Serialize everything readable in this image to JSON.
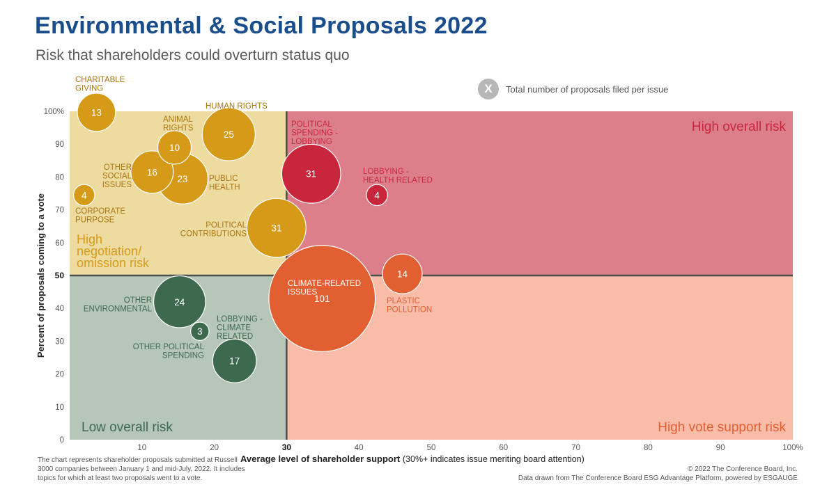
{
  "title": "Environmental & Social Proposals 2022",
  "subtitle": "Risk that shareholders could overturn status quo",
  "legend": {
    "badge": "X",
    "text": "Total number of proposals filed per issue",
    "color": "#b7b7b7"
  },
  "footnote": "The chart represents shareholder proposals submitted at Russell 3000 companies between January 1 and mid-July, 2022. It includes topics for which at least two proposals went to a vote.",
  "copyright": "© 2022 The Conference Board, Inc.",
  "source": "Data drawn from The Conference Board ESG Advantage Platform, powered by ESGAUGE",
  "colors": {
    "quad_top_left": "#eedba0",
    "quad_top_right": "#dd7f8a",
    "quad_bottom_left": "#b6c6b9",
    "quad_bottom_right": "#f8bca8",
    "gold": "#d69a19",
    "red": "#c8263d",
    "orange": "#e25f32",
    "green": "#3d6a4e",
    "divider": "#4a4f4a"
  },
  "chart_data": {
    "type": "scatter",
    "xlabel": "Average level of shareholder support (30%+ indicates issue meriting board attention)",
    "ylabel": "Percent of proposals coming to a vote",
    "xlim": [
      0,
      100
    ],
    "ylim": [
      0,
      100
    ],
    "x_ticks": [
      {
        "value": 10,
        "label": "10"
      },
      {
        "value": 20,
        "label": "20"
      },
      {
        "value": 30,
        "label": "30"
      },
      {
        "value": 40,
        "label": "40"
      },
      {
        "value": 50,
        "label": "50"
      },
      {
        "value": 60,
        "label": "60"
      },
      {
        "value": 70,
        "label": "70"
      },
      {
        "value": 80,
        "label": "80"
      },
      {
        "value": 90,
        "label": "90"
      },
      {
        "value": 100,
        "label": "100%"
      }
    ],
    "y_ticks": [
      {
        "value": 0,
        "label": "0"
      },
      {
        "value": 10,
        "label": "10"
      },
      {
        "value": 20,
        "label": "20"
      },
      {
        "value": 30,
        "label": "30"
      },
      {
        "value": 40,
        "label": "40"
      },
      {
        "value": 50,
        "label": "50"
      },
      {
        "value": 60,
        "label": "60"
      },
      {
        "value": 70,
        "label": "70"
      },
      {
        "value": 80,
        "label": "80"
      },
      {
        "value": 90,
        "label": "90"
      },
      {
        "value": 100,
        "label": "100%"
      }
    ],
    "x_threshold": 30,
    "y_threshold": 50,
    "quadrant_labels": [
      {
        "id": "high-overall",
        "text": [
          "High overall risk"
        ],
        "color": "#c8263d"
      },
      {
        "id": "high-negotiation",
        "text": [
          "High",
          "negotiation/",
          "omission risk"
        ],
        "color": "#d69a19"
      },
      {
        "id": "low-overall",
        "text": [
          "Low overall risk"
        ],
        "color": "#3d6a4e"
      },
      {
        "id": "high-vote-support",
        "text": [
          "High vote support risk"
        ],
        "color": "#e25f32"
      }
    ],
    "points": [
      {
        "name": "CHARITABLE GIVING",
        "label": [
          "CHARITABLE",
          "GIVING"
        ],
        "x": 3.7,
        "y": 99.7,
        "proposals": 13,
        "group": "gold"
      },
      {
        "name": "HUMAN RIGHTS",
        "label": [
          "HUMAN RIGHTS"
        ],
        "x": 22,
        "y": 93,
        "proposals": 25,
        "group": "gold"
      },
      {
        "name": "ANIMAL RIGHTS",
        "label": [
          "ANIMAL",
          "RIGHTS"
        ],
        "x": 14.5,
        "y": 89,
        "proposals": 10,
        "group": "gold"
      },
      {
        "name": "OTHER SOCIAL ISSUES",
        "label": [
          "OTHER",
          "SOCIAL",
          "ISSUES"
        ],
        "x": 11.4,
        "y": 81.5,
        "proposals": 16,
        "group": "gold"
      },
      {
        "name": "PUBLIC HEALTH",
        "label": [
          "PUBLIC",
          "HEALTH"
        ],
        "x": 15.6,
        "y": 79.5,
        "proposals": 23,
        "group": "gold"
      },
      {
        "name": "CORPORATE PURPOSE",
        "label": [
          "CORPORATE",
          "PURPOSE"
        ],
        "x": 2,
        "y": 74.5,
        "proposals": 4,
        "group": "gold"
      },
      {
        "name": "POLITICAL CONTRIBUTIONS",
        "label": [
          "POLITICAL",
          "CONTRIBUTIONS"
        ],
        "x": 28.6,
        "y": 64.5,
        "proposals": 31,
        "group": "gold"
      },
      {
        "name": "POLITICAL SPENDING - LOBBYING",
        "label": [
          "POLITICAL",
          "SPENDING -",
          "LOBBYING"
        ],
        "x": 33.4,
        "y": 81,
        "proposals": 31,
        "group": "red"
      },
      {
        "name": "LOBBYING - HEALTH RELATED",
        "label": [
          "LOBBYING -",
          "HEALTH RELATED"
        ],
        "x": 42.5,
        "y": 74.5,
        "proposals": 4,
        "group": "red"
      },
      {
        "name": "CLIMATE-RELATED ISSUES",
        "label": [
          "CLIMATE-RELATED",
          "ISSUES"
        ],
        "x": 34.9,
        "y": 43,
        "proposals": 101,
        "group": "orange"
      },
      {
        "name": "PLASTIC POLLUTION",
        "label": [
          "PLASTIC",
          "POLLUTION"
        ],
        "x": 46,
        "y": 50.5,
        "proposals": 14,
        "group": "orange"
      },
      {
        "name": "OTHER ENVIRONMENTAL",
        "label": [
          "OTHER",
          "ENVIRONMENTAL"
        ],
        "x": 15.2,
        "y": 42,
        "proposals": 24,
        "group": "green"
      },
      {
        "name": "OTHER POLITICAL SPENDING",
        "label": [
          "OTHER POLITICAL",
          "SPENDING"
        ],
        "x": 18,
        "y": 33,
        "proposals": 3,
        "group": "green"
      },
      {
        "name": "LOBBYING - CLIMATE RELATED",
        "label": [
          "LOBBYING -",
          "CLIMATE",
          "RELATED"
        ],
        "x": 22.8,
        "y": 24,
        "proposals": 17,
        "group": "green"
      }
    ]
  }
}
